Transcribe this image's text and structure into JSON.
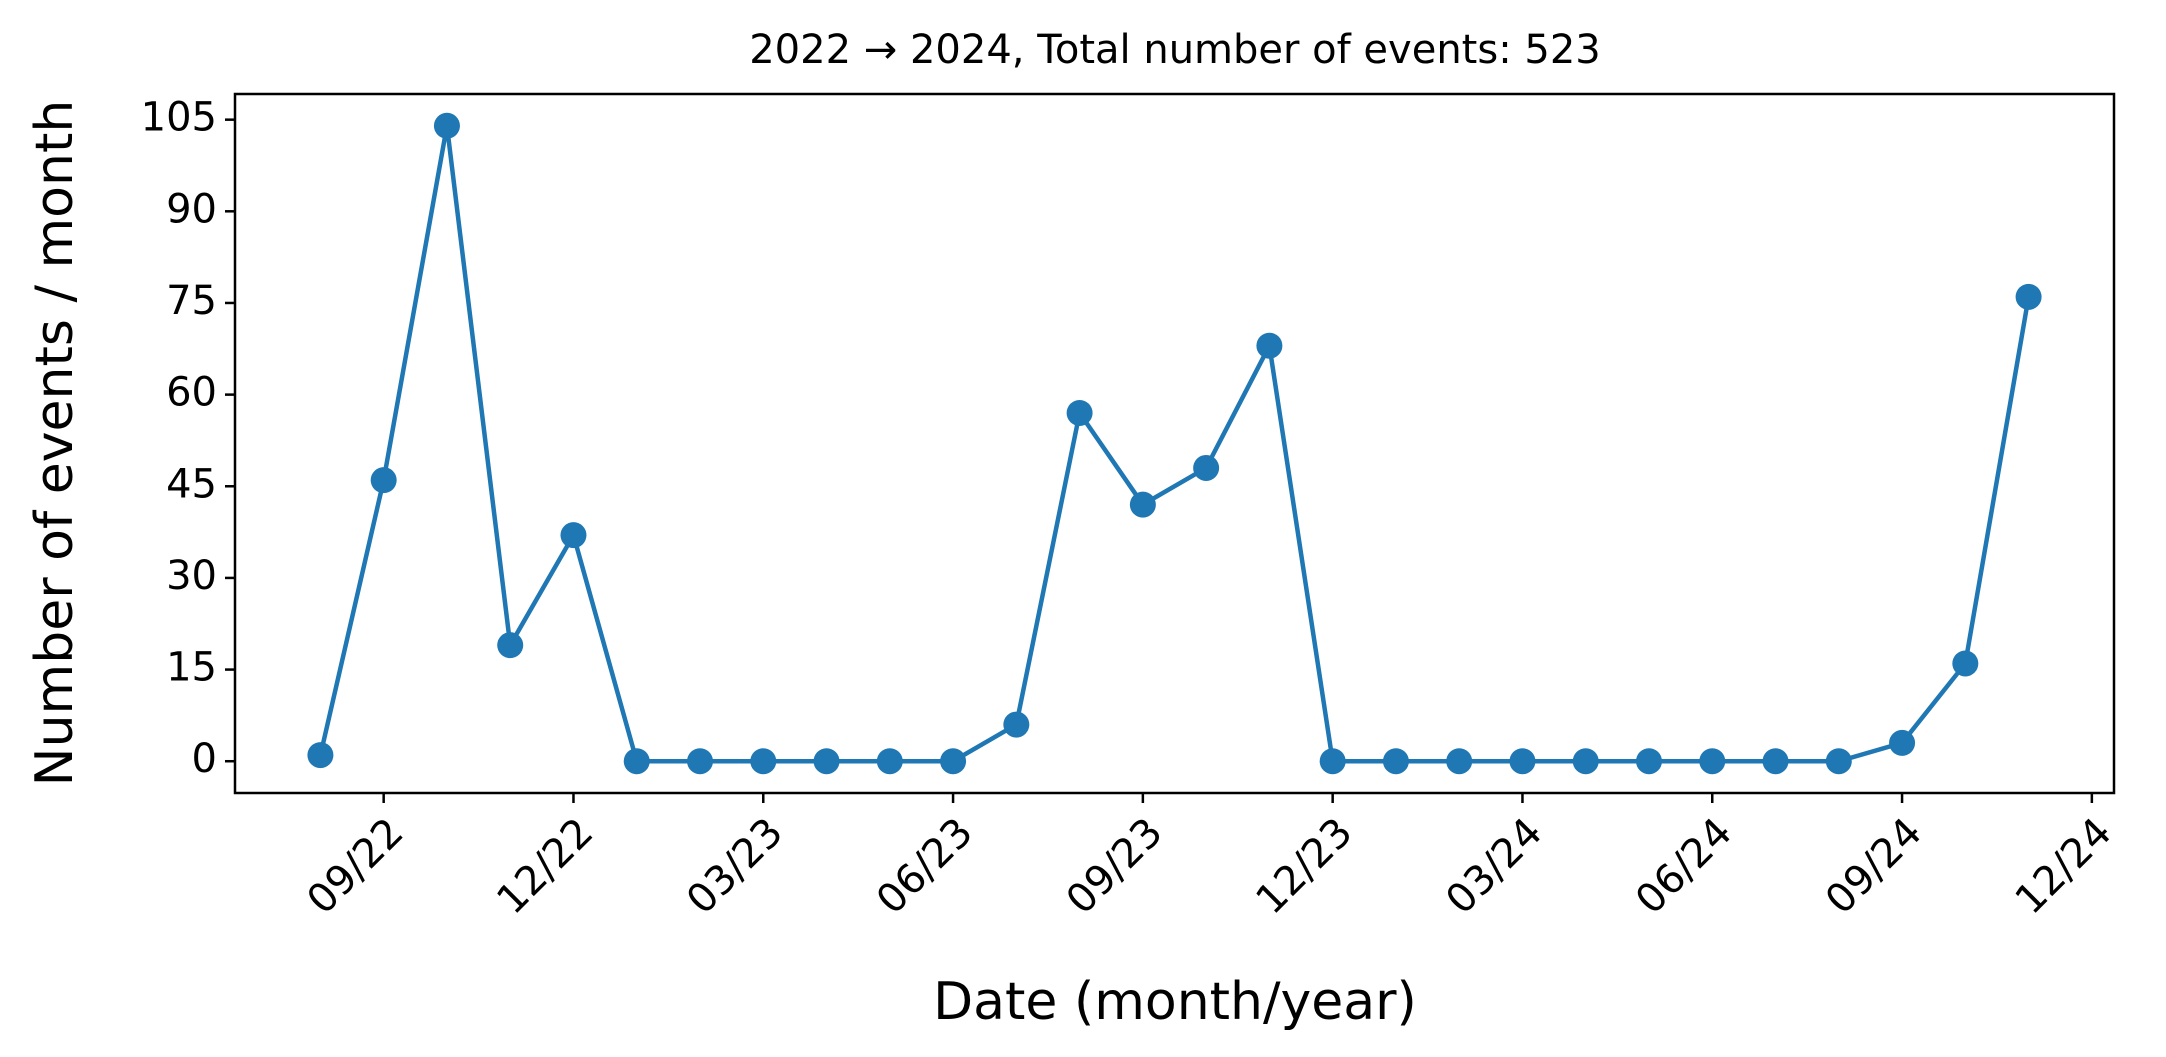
{
  "chart_data": {
    "type": "line",
    "title": "2022 → 2024, Total number of events: 523",
    "x_label": "Date (month/year)",
    "y_label": "Number of events / month",
    "x": [
      "08/22",
      "09/22",
      "10/22",
      "11/22",
      "12/22",
      "01/23",
      "02/23",
      "03/23",
      "04/23",
      "05/23",
      "06/23",
      "07/23",
      "08/23",
      "09/23",
      "10/23",
      "11/23",
      "12/23",
      "01/24",
      "02/24",
      "03/24",
      "04/24",
      "05/24",
      "06/24",
      "07/24",
      "08/24",
      "09/24",
      "10/24",
      "11/24"
    ],
    "series": [
      {
        "name": "events",
        "color": "#1f77b4",
        "values": [
          1,
          46,
          104,
          19,
          37,
          0,
          0,
          0,
          0,
          0,
          0,
          6,
          57,
          42,
          48,
          68,
          0,
          0,
          0,
          0,
          0,
          0,
          0,
          0,
          0,
          3,
          16,
          76
        ]
      }
    ],
    "xticks": [
      "09/22",
      "12/22",
      "03/23",
      "06/23",
      "09/23",
      "12/23",
      "03/24",
      "06/24",
      "09/24",
      "12/24"
    ],
    "ylim": [
      -5.2,
      109.2
    ],
    "yticks": [
      0,
      15,
      30,
      45,
      60,
      75,
      90,
      105
    ],
    "grid": false
  }
}
